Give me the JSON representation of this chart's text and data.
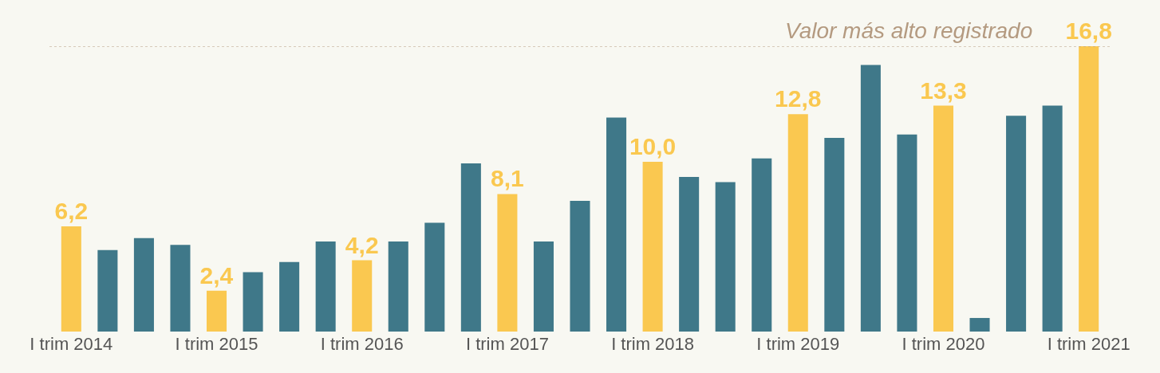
{
  "chart_data": {
    "type": "bar",
    "categories": [
      "I trim 2014",
      null,
      null,
      null,
      "I trim 2015",
      null,
      null,
      null,
      "I trim 2016",
      null,
      null,
      null,
      "I trim 2017",
      null,
      null,
      null,
      "I trim 2018",
      null,
      null,
      null,
      "I trim 2019",
      null,
      null,
      null,
      "I trim 2020",
      null,
      null,
      null,
      "I trim 2021"
    ],
    "values": [
      6.2,
      4.8,
      5.5,
      5.1,
      2.4,
      3.5,
      4.1,
      5.3,
      4.2,
      5.3,
      6.4,
      9.9,
      8.1,
      5.3,
      7.7,
      12.6,
      10.0,
      9.1,
      8.8,
      10.2,
      12.8,
      11.4,
      15.7,
      11.6,
      13.3,
      0.8,
      12.7,
      13.3,
      16.8
    ],
    "value_labels": [
      "6,2",
      null,
      null,
      null,
      "2,4",
      null,
      null,
      null,
      "4,2",
      null,
      null,
      null,
      "8,1",
      null,
      null,
      null,
      "10,0",
      null,
      null,
      null,
      "12,8",
      null,
      null,
      null,
      "13,3",
      null,
      null,
      null,
      "16,8"
    ],
    "colors": [
      "#fac850",
      "#3f7889",
      "#3f7889",
      "#3f7889",
      "#fac850",
      "#3f7889",
      "#3f7889",
      "#3f7889",
      "#fac850",
      "#3f7889",
      "#3f7889",
      "#3f7889",
      "#fac850",
      "#3f7889",
      "#3f7889",
      "#3f7889",
      "#fac850",
      "#3f7889",
      "#3f7889",
      "#3f7889",
      "#fac850",
      "#3f7889",
      "#3f7889",
      "#3f7889",
      "#fac850",
      "#3f7889",
      "#3f7889",
      "#3f7889",
      "#fac850"
    ],
    "ylim": [
      0,
      16.8
    ],
    "ref_lines": [
      {
        "axis": "y",
        "value": 16.8,
        "label": "Valor más alto registrado",
        "color": "#b49a80",
        "line_style": "dotted"
      }
    ],
    "grid": false
  }
}
